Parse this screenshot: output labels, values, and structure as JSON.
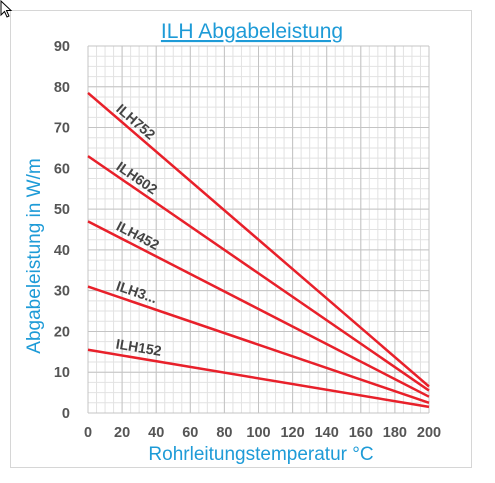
{
  "chart_data": {
    "type": "line",
    "title": "ILH Abgabeleistung",
    "xlabel": "Rohrleitungstemperatur °C",
    "ylabel": "Abgabeleistung in W/m",
    "xlim": [
      0,
      200
    ],
    "ylim": [
      0,
      90
    ],
    "x_ticks": [
      "0",
      "20",
      "40",
      "60",
      "80",
      "100",
      "120",
      "140",
      "160",
      "180",
      "200"
    ],
    "y_ticks": [
      "0",
      "10",
      "20",
      "30",
      "40",
      "50",
      "60",
      "70",
      "80",
      "90"
    ],
    "grid": true,
    "line_color": "#e8202a",
    "series": [
      {
        "name": "ILH752",
        "x": [
          0,
          200
        ],
        "values": [
          78.5,
          6.5
        ]
      },
      {
        "name": "ILH602",
        "x": [
          0,
          200
        ],
        "values": [
          63,
          5.5
        ]
      },
      {
        "name": "ILH452",
        "x": [
          0,
          200
        ],
        "values": [
          47,
          4
        ]
      },
      {
        "name": "ILH3...",
        "x": [
          0,
          200
        ],
        "values": [
          31,
          2.5
        ]
      },
      {
        "name": "ILH152",
        "x": [
          0,
          200
        ],
        "values": [
          15.5,
          1.5
        ]
      }
    ]
  }
}
